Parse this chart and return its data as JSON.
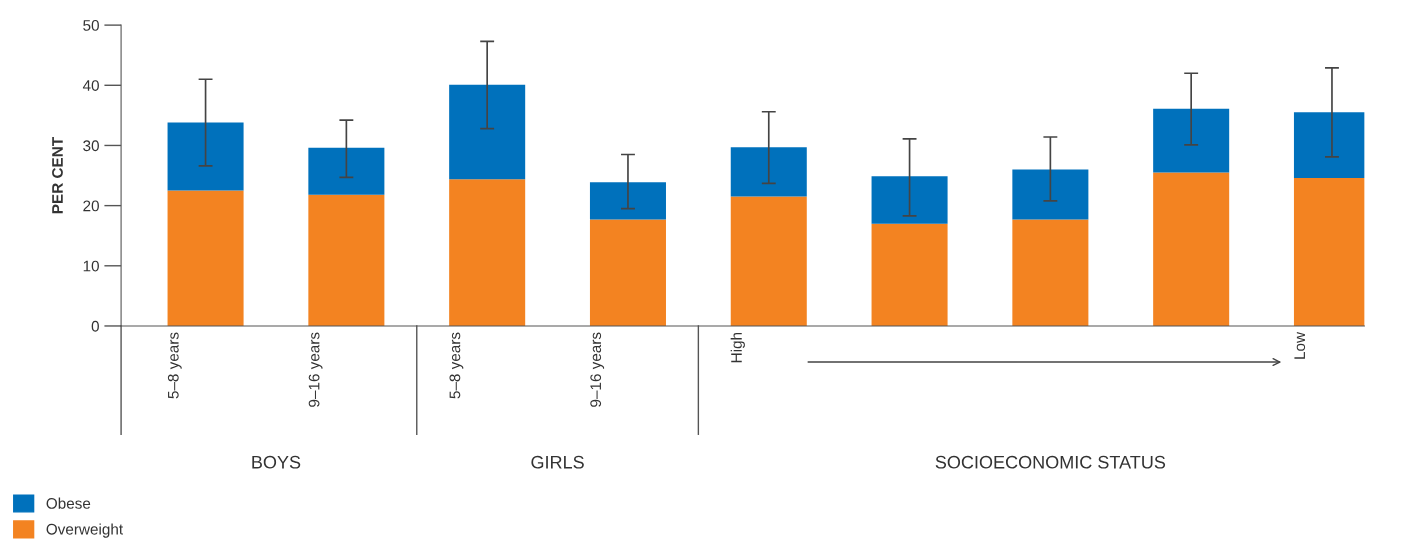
{
  "chart_data": {
    "type": "bar",
    "stacked": true,
    "ylabel": "PER CENT",
    "categories": [
      "5–8 years",
      "9–16 years",
      "5–8 years",
      "9–16 years",
      "High",
      null,
      null,
      null,
      "Low"
    ],
    "series": [
      {
        "name": "Overweight",
        "color": "#f38321",
        "values": [
          22.5,
          21.8,
          24.4,
          17.7,
          21.5,
          17.0,
          17.7,
          25.5,
          24.6
        ]
      },
      {
        "name": "Obese",
        "color": "#0071bc",
        "values": [
          11.3,
          7.8,
          15.7,
          6.2,
          8.2,
          7.9,
          8.3,
          10.6,
          10.9
        ],
        "errors": [
          [
            26.6,
            41.0
          ],
          [
            24.7,
            34.2
          ],
          [
            32.8,
            47.3
          ],
          [
            19.5,
            28.5
          ],
          [
            23.7,
            35.6
          ],
          [
            18.3,
            31.1
          ],
          [
            20.8,
            31.4
          ],
          [
            30.1,
            42.0
          ],
          [
            28.1,
            42.9
          ]
        ]
      }
    ],
    "ylim": [
      0,
      50
    ],
    "yticks": [
      0,
      10,
      20,
      30,
      40,
      50
    ],
    "grid": false,
    "legend": "bottom left",
    "annotations": [
      "BOYS",
      "GIRLS",
      "SOCIOECONOMIC STATUS"
    ]
  }
}
